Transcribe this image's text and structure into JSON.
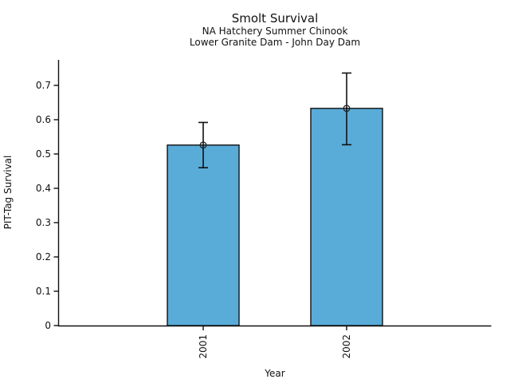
{
  "chart_data": {
    "type": "bar",
    "title": "Smolt Survival",
    "subtitle1": "NA Hatchery Summer Chinook",
    "subtitle2": "Lower Granite Dam - John Day Dam",
    "xlabel": "Year",
    "ylabel": "PIT-Tag Survival",
    "categories": [
      "2001",
      "2002"
    ],
    "values": [
      0.526,
      0.633
    ],
    "error_low": [
      0.46,
      0.527
    ],
    "error_high": [
      0.592,
      0.736
    ],
    "ylim": [
      0,
      0.775
    ],
    "yticks": [
      0,
      0.1,
      0.2,
      0.3,
      0.4,
      0.5,
      0.6,
      0.7
    ],
    "ytick_labels": [
      "0",
      "0.1",
      "0.2",
      "0.3",
      "0.4",
      "0.5",
      "0.6",
      "0.7"
    ],
    "grid": false,
    "legend": null,
    "marker": "open-circle",
    "bar_color": "#59ACD8",
    "edge_color": "#111111",
    "error_color": "#111111",
    "text_color": "#111111",
    "background_color": "#ffffff"
  }
}
